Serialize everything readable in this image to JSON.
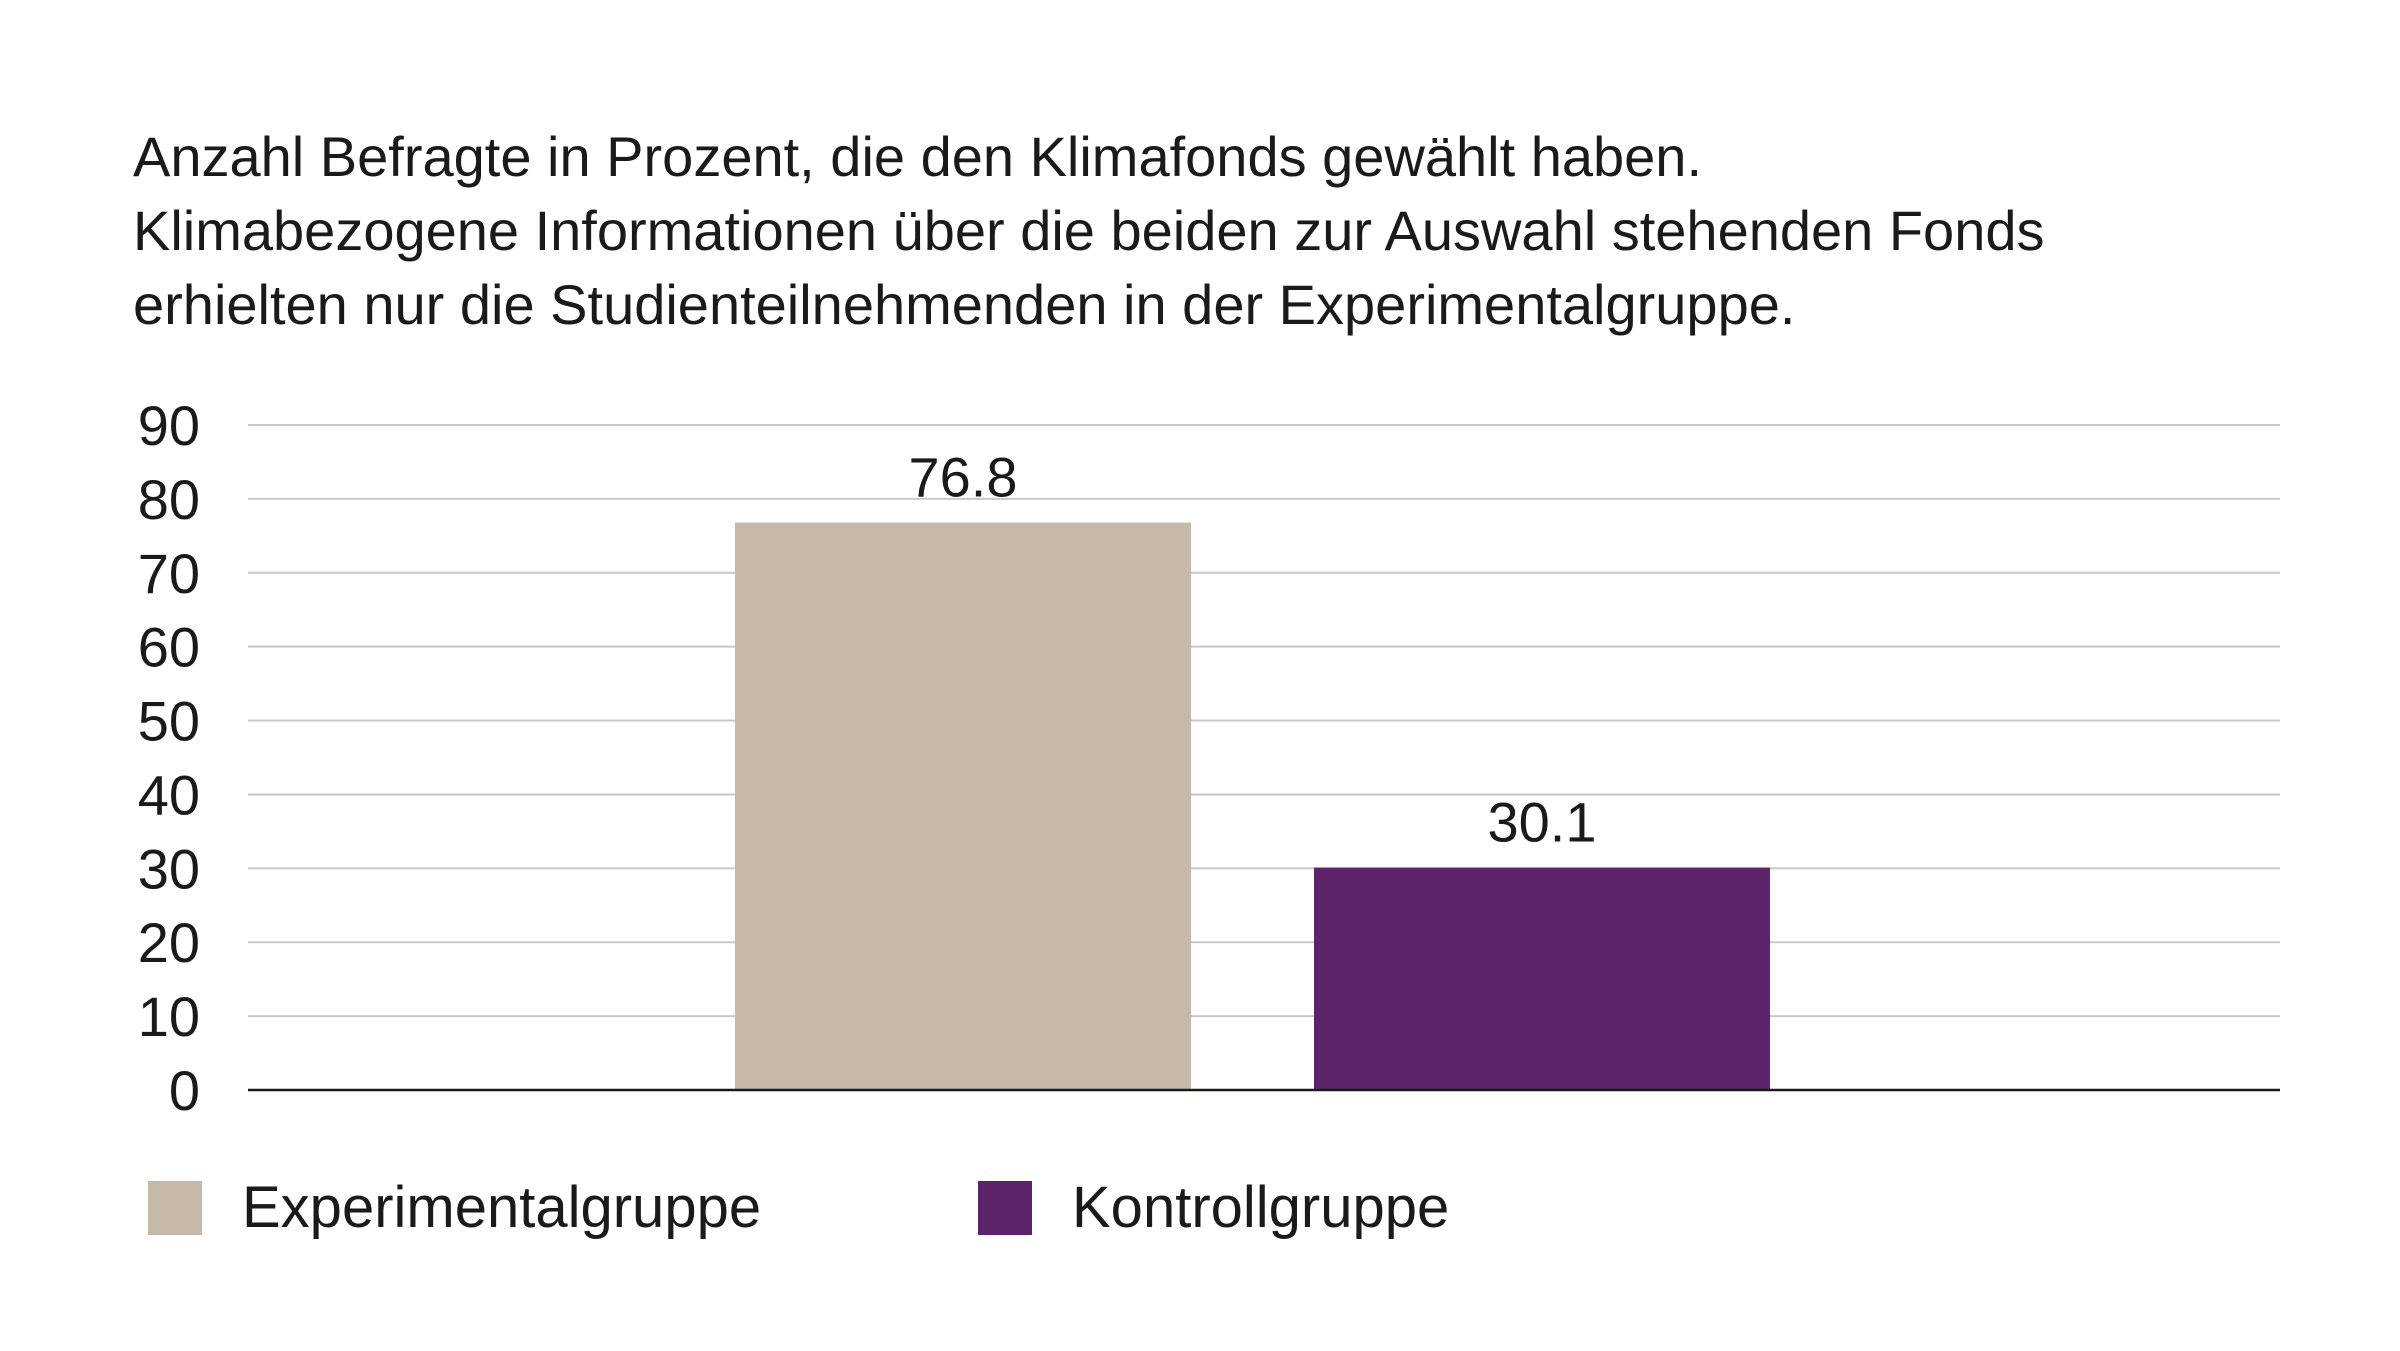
{
  "chart_data": {
    "type": "bar",
    "title_lines": [
      "Anzahl Befragte in Prozent, die den Klimafonds gewählt haben.",
      "Klimabezogene Informationen über die beiden zur Auswahl stehenden Fonds",
      "erhielten nur die Studienteilnehmenden in der Experimentalgruppe."
    ],
    "categories": [
      "Experimentalgruppe",
      "Kontrollgruppe"
    ],
    "values": [
      76.8,
      30.1
    ],
    "value_labels": [
      "76.8",
      "30.1"
    ],
    "colors": [
      "#c6b9aa",
      "#5e246b"
    ],
    "legend": [
      {
        "label": "Experimentalgruppe",
        "color": "#c6b9aa"
      },
      {
        "label": "Kontrollgruppe",
        "color": "#5e246b"
      }
    ],
    "legend_position": "bottom-left",
    "ylim": [
      0,
      90
    ],
    "yticks": [
      0,
      10,
      20,
      30,
      40,
      50,
      60,
      70,
      80,
      90
    ],
    "grid": true,
    "xlabel": "",
    "ylabel": ""
  }
}
